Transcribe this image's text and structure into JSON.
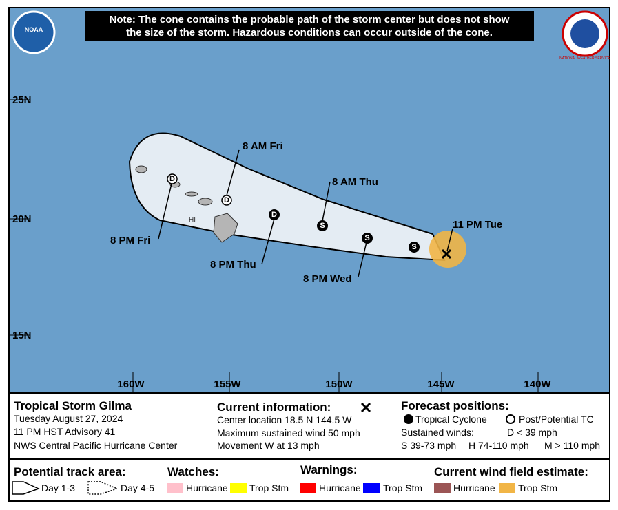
{
  "header": {
    "note_lines": [
      "Note: The cone contains the probable path of the storm center but does not show",
      "the size of the storm. Hazardous conditions can occur outside of the cone."
    ],
    "left_logo": "NOAA",
    "right_logo": "NATIONAL WEATHER SERVICE"
  },
  "map": {
    "lat_labels": [
      "25N",
      "20N",
      "15N"
    ],
    "lon_labels": [
      "160W",
      "155W",
      "150W",
      "145W",
      "140W"
    ],
    "island_label": "HI",
    "forecast_labels": [
      "8 AM Fri",
      "8 PM Fri",
      "8 AM Thu",
      "8 PM Thu",
      "8 PM Wed",
      "11 PM Tue"
    ],
    "points": [
      "D",
      "D",
      "D",
      "S",
      "S",
      "S"
    ]
  },
  "info": {
    "storm": {
      "name": "Tropical Storm Gilma",
      "date": "Tuesday August 27, 2024",
      "advisory": "11 PM HST Advisory 41",
      "center": "NWS Central Pacific Hurricane Center"
    },
    "current": {
      "title": "Current information:",
      "location": "Center location 18.5 N 144.5 W",
      "wind": "Maximum sustained wind 50 mph",
      "movement": "Movement W at 13 mph"
    },
    "forecast": {
      "title": "Forecast positions:",
      "tc": "Tropical Cyclone",
      "post": "Post/Potential TC",
      "sustained": "Sustained winds:",
      "d": "D < 39 mph",
      "s": "S 39-73 mph",
      "h": "H 74-110 mph",
      "m": "M > 110 mph"
    }
  },
  "legend": {
    "track_title": "Potential track area:",
    "day13": "Day 1-3",
    "day45": "Day 4-5",
    "watches_title": "Watches:",
    "watch_hurricane": "Hurricane",
    "watch_ts": "Trop Stm",
    "warnings_title": "Warnings:",
    "warn_hurricane": "Hurricane",
    "warn_ts": "Trop Stm",
    "wind_title": "Current wind field estimate:",
    "wind_hurricane": "Hurricane",
    "wind_ts": "Trop Stm"
  }
}
